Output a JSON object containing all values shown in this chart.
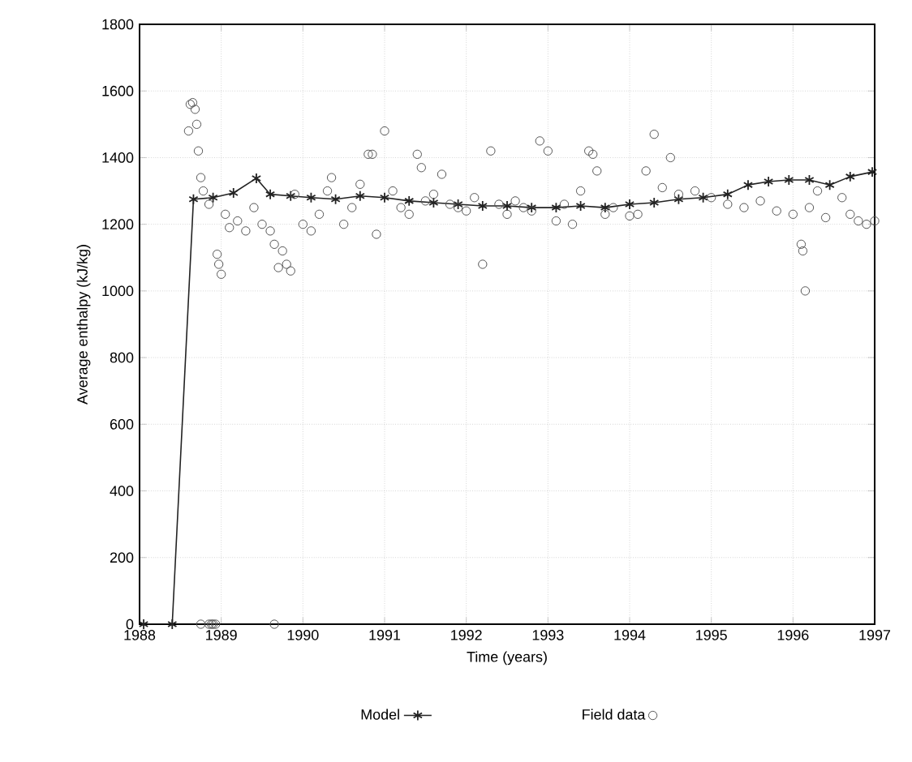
{
  "chart_data": {
    "type": "line",
    "xlabel": "Time (years)",
    "ylabel": "Average enthalpy (kJ/kg)",
    "xlim": [
      1988,
      1997
    ],
    "ylim": [
      0,
      1800
    ],
    "xticks": [
      1988,
      1989,
      1990,
      1991,
      1992,
      1993,
      1994,
      1995,
      1996,
      1997
    ],
    "yticks": [
      0,
      200,
      400,
      600,
      800,
      1000,
      1200,
      1400,
      1600,
      1800
    ],
    "grid": true,
    "legend": "bottom",
    "series": [
      {
        "name": "Model",
        "type": "line",
        "color": "#222222",
        "marker": "cross",
        "line_style": "solid",
        "x": [
          1988.05,
          1988.4,
          1988.66,
          1988.9,
          1989.15,
          1989.43,
          1989.6,
          1989.85,
          1990.1,
          1990.4,
          1990.7,
          1991.0,
          1991.3,
          1991.6,
          1991.9,
          1992.2,
          1992.5,
          1992.8,
          1993.1,
          1993.4,
          1993.7,
          1994.0,
          1994.3,
          1994.6,
          1994.9,
          1995.2,
          1995.45,
          1995.7,
          1995.95,
          1996.2,
          1996.45,
          1996.7,
          1996.97
        ],
        "values": [
          0,
          0,
          1275,
          1280,
          1294,
          1338,
          1290,
          1285,
          1280,
          1275,
          1285,
          1280,
          1270,
          1265,
          1260,
          1255,
          1255,
          1250,
          1250,
          1255,
          1250,
          1260,
          1265,
          1275,
          1280,
          1290,
          1318,
          1328,
          1333,
          1333,
          1318,
          1343,
          1357
        ]
      },
      {
        "name": "Field data",
        "type": "scatter",
        "color": "#555555",
        "marker": "circle",
        "x": [
          1988.6,
          1988.62,
          1988.65,
          1988.68,
          1988.7,
          1988.72,
          1988.75,
          1988.78,
          1988.85,
          1988.95,
          1988.97,
          1989.0,
          1989.05,
          1989.1,
          1989.2,
          1989.3,
          1989.4,
          1989.5,
          1989.6,
          1989.65,
          1989.7,
          1989.75,
          1989.8,
          1989.85,
          1989.9,
          1990.0,
          1990.1,
          1990.2,
          1990.3,
          1990.35,
          1990.5,
          1990.6,
          1990.7,
          1990.8,
          1990.85,
          1990.9,
          1991.0,
          1991.1,
          1991.2,
          1991.3,
          1991.4,
          1991.45,
          1991.5,
          1991.6,
          1991.7,
          1991.8,
          1991.9,
          1992.0,
          1992.1,
          1992.2,
          1992.3,
          1992.4,
          1992.5,
          1992.6,
          1992.7,
          1992.8,
          1992.9,
          1993.0,
          1993.1,
          1993.2,
          1993.3,
          1993.4,
          1993.5,
          1993.55,
          1993.6,
          1993.7,
          1993.8,
          1994.0,
          1994.1,
          1994.2,
          1994.3,
          1994.4,
          1994.5,
          1994.6,
          1994.8,
          1995.0,
          1995.2,
          1995.4,
          1995.6,
          1995.8,
          1996.0,
          1996.1,
          1996.12,
          1996.15,
          1996.2,
          1996.3,
          1996.4,
          1996.6,
          1996.7,
          1996.8,
          1996.9,
          1997.0,
          1988.75,
          1988.85,
          1988.88,
          1988.9,
          1988.93,
          1989.65
        ],
        "values": [
          1480,
          1560,
          1565,
          1545,
          1500,
          1420,
          1340,
          1300,
          1260,
          1110,
          1080,
          1050,
          1230,
          1190,
          1210,
          1180,
          1250,
          1200,
          1180,
          1140,
          1070,
          1120,
          1080,
          1060,
          1290,
          1200,
          1180,
          1230,
          1300,
          1340,
          1200,
          1250,
          1320,
          1410,
          1410,
          1170,
          1480,
          1300,
          1250,
          1230,
          1410,
          1370,
          1270,
          1290,
          1350,
          1260,
          1250,
          1240,
          1280,
          1080,
          1420,
          1260,
          1230,
          1270,
          1250,
          1240,
          1450,
          1420,
          1210,
          1260,
          1200,
          1300,
          1420,
          1410,
          1360,
          1230,
          1250,
          1225,
          1230,
          1360,
          1470,
          1310,
          1400,
          1290,
          1300,
          1280,
          1260,
          1250,
          1270,
          1240,
          1230,
          1140,
          1120,
          1000,
          1250,
          1300,
          1220,
          1280,
          1230,
          1210,
          1200,
          1210,
          0,
          0,
          0,
          0,
          0,
          0
        ]
      }
    ]
  }
}
